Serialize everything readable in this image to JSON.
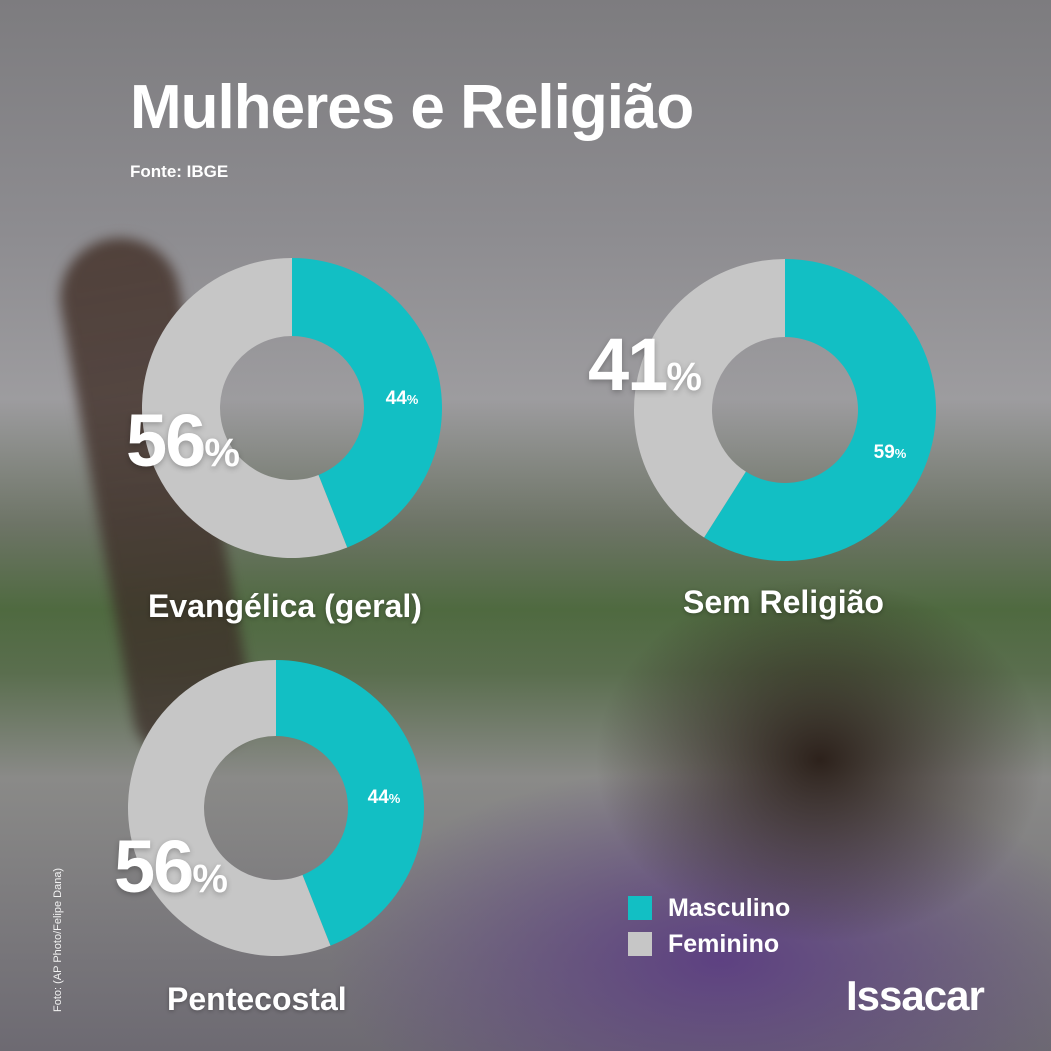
{
  "header": {
    "title": "Mulheres e Religião",
    "source": "Fonte: IBGE"
  },
  "colors": {
    "masculino": "#12bfc4",
    "feminino": "#c6c6c6"
  },
  "chart_data": [
    {
      "type": "pie",
      "title": "Evangélica (geral)",
      "categories": [
        "Masculino",
        "Feminino"
      ],
      "values": [
        44,
        56
      ],
      "labels": [
        "44",
        "56"
      ],
      "unit": "%"
    },
    {
      "type": "pie",
      "title": "Sem Religião",
      "categories": [
        "Masculino",
        "Feminino"
      ],
      "values": [
        59,
        41
      ],
      "labels": [
        "59",
        "41"
      ],
      "unit": "%"
    },
    {
      "type": "pie",
      "title": "Pentecostal",
      "categories": [
        "Masculino",
        "Feminino"
      ],
      "values": [
        44,
        56
      ],
      "labels": [
        "44",
        "56"
      ],
      "unit": "%"
    }
  ],
  "legend": {
    "items": [
      {
        "label": "Masculino",
        "color": "#12bfc4"
      },
      {
        "label": "Feminino",
        "color": "#c6c6c6"
      }
    ]
  },
  "brand": "Issacar",
  "photo_credit": "Foto: (AP Photo/Felipe Dana)"
}
